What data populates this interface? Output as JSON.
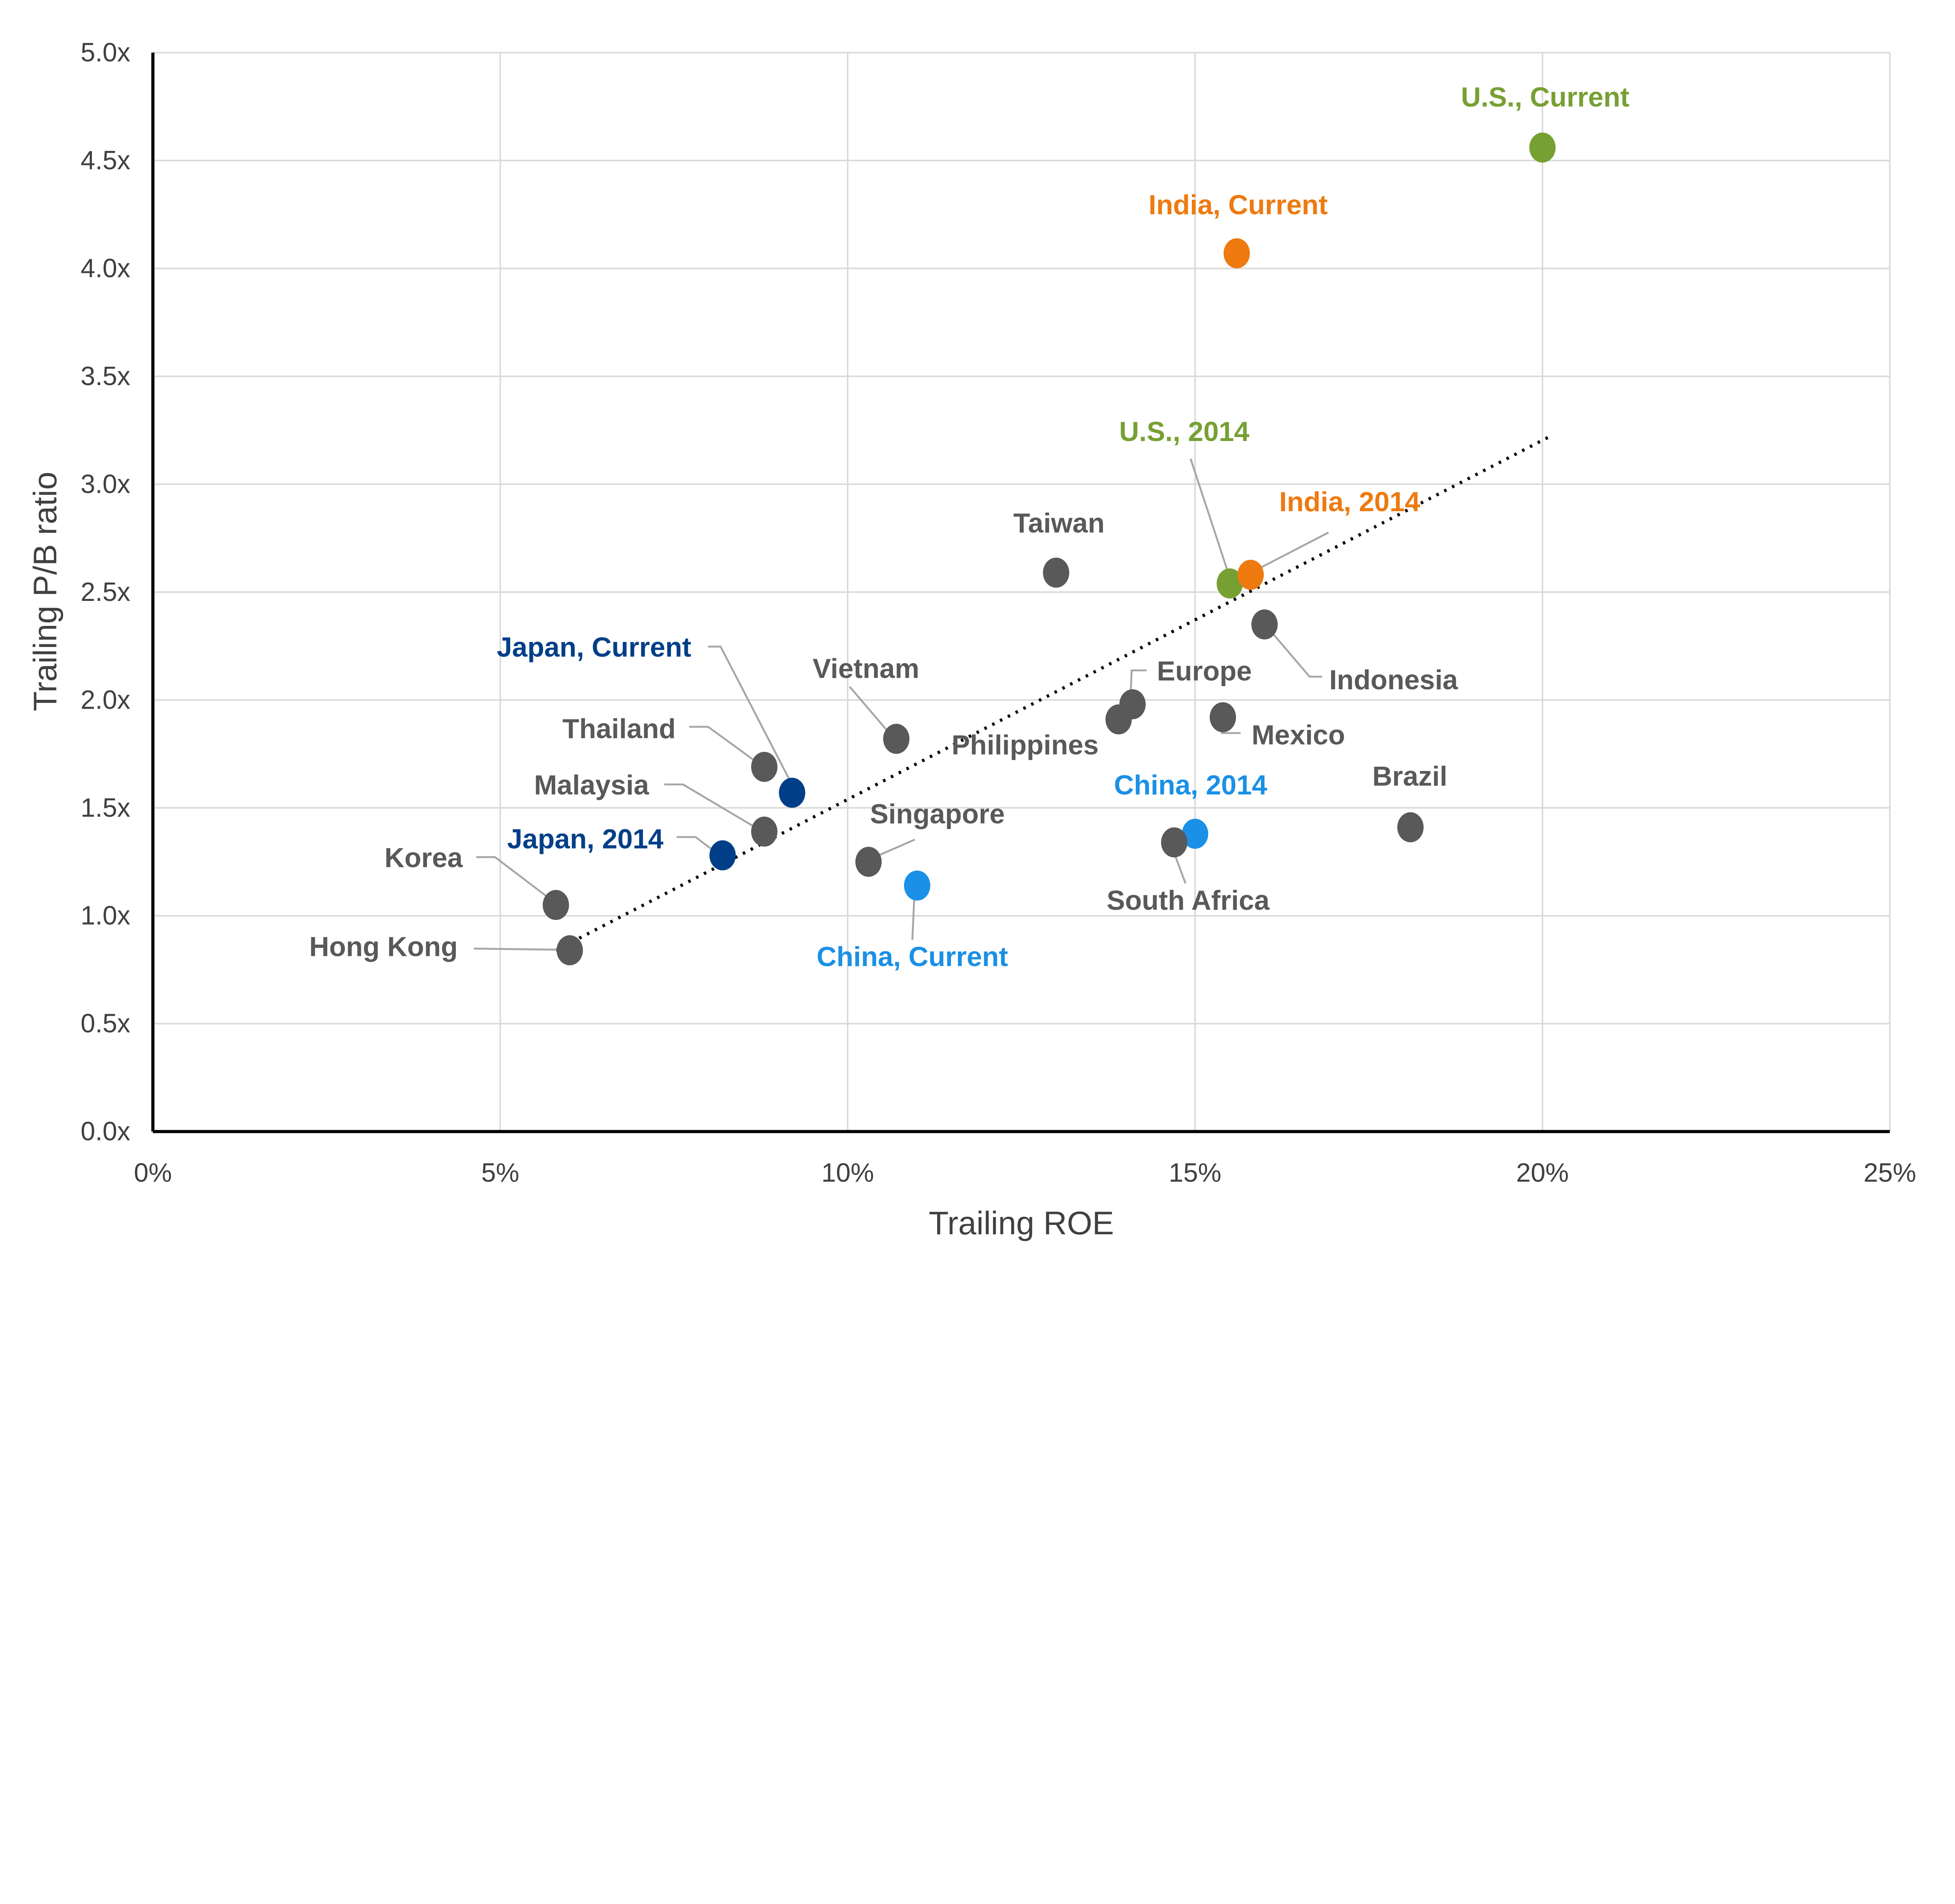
{
  "chart_data": {
    "type": "scatter",
    "xlabel": "Trailing ROE",
    "ylabel": "Trailing P/B ratio",
    "xlim": [
      0,
      25
    ],
    "ylim": [
      0,
      5
    ],
    "x_ticks": [
      "0%",
      "5%",
      "10%",
      "15%",
      "20%",
      "25%"
    ],
    "y_ticks": [
      "0.0x",
      "0.5x",
      "1.0x",
      "1.5x",
      "2.0x",
      "2.5x",
      "3.0x",
      "3.5x",
      "4.0x",
      "4.5x",
      "5.0x"
    ],
    "grid": true,
    "colors": {
      "default": "#595959",
      "us": "#77A033",
      "india": "#EE7A10",
      "japan": "#003F87",
      "china": "#1A90E6",
      "grid": "#D9D9D9",
      "trendline": "#000000"
    },
    "points": [
      {
        "label": "U.S., Current",
        "x": 20.0,
        "y": 4.56,
        "color": "#77A033"
      },
      {
        "label": "India, Current",
        "x": 15.6,
        "y": 4.07,
        "color": "#EE7A10"
      },
      {
        "label": "U.S., 2014",
        "x": 15.5,
        "y": 2.54,
        "color": "#77A033"
      },
      {
        "label": "India, 2014",
        "x": 15.8,
        "y": 2.58,
        "color": "#EE7A10"
      },
      {
        "label": "Taiwan",
        "x": 13.0,
        "y": 2.59,
        "color": "#595959"
      },
      {
        "label": "Indonesia",
        "x": 16.0,
        "y": 2.35,
        "color": "#595959"
      },
      {
        "label": "Europe",
        "x": 14.1,
        "y": 1.98,
        "color": "#595959"
      },
      {
        "label": "Philippines",
        "x": 13.9,
        "y": 1.91,
        "color": "#595959"
      },
      {
        "label": "Mexico",
        "x": 15.4,
        "y": 1.92,
        "color": "#595959"
      },
      {
        "label": "Vietnam",
        "x": 10.7,
        "y": 1.82,
        "color": "#595959"
      },
      {
        "label": "Thailand",
        "x": 8.8,
        "y": 1.69,
        "color": "#595959"
      },
      {
        "label": "Japan, Current",
        "x": 9.2,
        "y": 1.57,
        "color": "#003F87"
      },
      {
        "label": "Malaysia",
        "x": 8.8,
        "y": 1.39,
        "color": "#595959"
      },
      {
        "label": "Japan, 2014",
        "x": 8.2,
        "y": 1.28,
        "color": "#003F87"
      },
      {
        "label": "Singapore",
        "x": 10.3,
        "y": 1.25,
        "color": "#595959"
      },
      {
        "label": "China, Current",
        "x": 11.0,
        "y": 1.14,
        "color": "#1A90E6"
      },
      {
        "label": "China, 2014",
        "x": 15.0,
        "y": 1.38,
        "color": "#1A90E6"
      },
      {
        "label": "South Africa",
        "x": 14.7,
        "y": 1.34,
        "color": "#595959"
      },
      {
        "label": "Brazil",
        "x": 18.1,
        "y": 1.41,
        "color": "#595959"
      },
      {
        "label": "Korea",
        "x": 5.8,
        "y": 1.05,
        "color": "#595959"
      },
      {
        "label": "Hong Kong",
        "x": 6.0,
        "y": 0.84,
        "color": "#595959"
      }
    ],
    "trendline": {
      "style": "dotted",
      "x": [
        5.8,
        20.1
      ],
      "y": [
        0.84,
        3.22
      ]
    }
  }
}
